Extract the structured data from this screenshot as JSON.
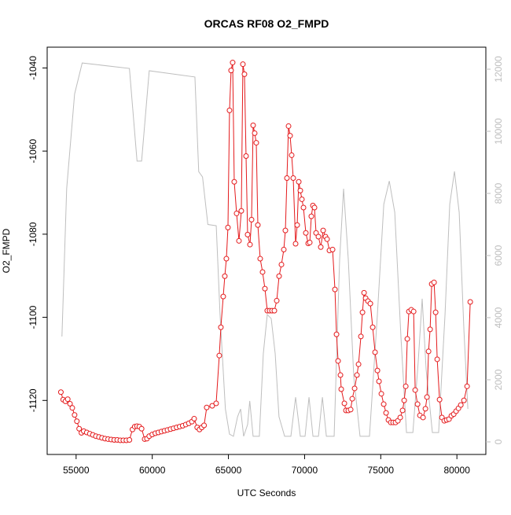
{
  "chart_data": {
    "type": "line",
    "title": "ORCAS RF08 O2_FMPD",
    "x_label": "UTC Seconds",
    "y_label": "O2_FMPD",
    "xlim": [
      53100,
      81900
    ],
    "ylim": [
      -1133,
      -1035
    ],
    "y2lim": [
      -405,
      12709
    ],
    "xticks": [
      55000,
      60000,
      65000,
      70000,
      75000,
      80000
    ],
    "yticks": [
      -1120,
      -1100,
      -1080,
      -1060,
      -1040
    ],
    "y2ticks": [
      0,
      2000,
      4000,
      6000,
      8000,
      10000,
      12000
    ],
    "series": [
      {
        "name": "O2_FMPD",
        "color": "#e41a1c",
        "markers": true,
        "x": [
          54000,
          54150,
          54300,
          54450,
          54600,
          54750,
          54900,
          55050,
          55200,
          55350,
          55500,
          55700,
          55900,
          56100,
          56300,
          56500,
          56700,
          56900,
          57100,
          57300,
          57500,
          57700,
          57900,
          58100,
          58300,
          58500,
          58700,
          58850,
          59000,
          59150,
          59300,
          59500,
          59650,
          59800,
          60000,
          60200,
          60400,
          60600,
          60800,
          61000,
          61200,
          61400,
          61600,
          61800,
          62000,
          62200,
          62400,
          62600,
          62750,
          62950,
          63100,
          63250,
          63400,
          63574,
          63936,
          64194,
          64400,
          64504,
          64659,
          64762,
          64865,
          64969,
          65072,
          65175,
          65278,
          65382,
          65537,
          65692,
          65847,
          65950,
          66053,
          66157,
          66260,
          66415,
          66518,
          66622,
          66725,
          66828,
          66932,
          67086,
          67241,
          67396,
          67551,
          67706,
          67861,
          68016,
          68171,
          68326,
          68481,
          68636,
          68739,
          68842,
          68946,
          69049,
          69152,
          69255,
          69410,
          69514,
          69617,
          69720,
          69823,
          69927,
          70082,
          70237,
          70340,
          70443,
          70547,
          70650,
          70753,
          70908,
          71063,
          71218,
          71373,
          71476,
          71631,
          71838,
          71993,
          72096,
          72199,
          72354,
          72406,
          72613,
          72716,
          72871,
          73026,
          73129,
          73284,
          73439,
          73542,
          73697,
          73801,
          73904,
          74007,
          74162,
          74317,
          74472,
          74627,
          74782,
          74885,
          75040,
          75195,
          75350,
          75505,
          75660,
          75815,
          75970,
          76125,
          76280,
          76434,
          76538,
          76641,
          76744,
          76848,
          77003,
          77158,
          77261,
          77416,
          77571,
          77777,
          77932,
          78036,
          78139,
          78242,
          78346,
          78500,
          78604,
          78707,
          78862,
          79017,
          79172,
          79327,
          79482,
          79637,
          79792,
          79947,
          80102,
          80256,
          80463,
          80669,
          80876
        ],
        "values": [
          -1118,
          -1119.8,
          -1120.2,
          -1119.7,
          -1120.8,
          -1121.8,
          -1123.5,
          -1125,
          -1126.8,
          -1127.8,
          -1127.4,
          -1127.7,
          -1128,
          -1128.3,
          -1128.6,
          -1128.8,
          -1129,
          -1129.2,
          -1129.3,
          -1129.4,
          -1129.5,
          -1129.5,
          -1129.6,
          -1129.6,
          -1129.6,
          -1129.5,
          -1127,
          -1126.3,
          -1126.2,
          -1126.3,
          -1126.8,
          -1129.3,
          -1129.2,
          -1128.6,
          -1128.2,
          -1127.9,
          -1127.7,
          -1127.5,
          -1127.3,
          -1127.1,
          -1126.9,
          -1126.7,
          -1126.5,
          -1126.3,
          -1126.1,
          -1125.8,
          -1125.5,
          -1125.1,
          -1124.4,
          -1126.5,
          -1127,
          -1126.5,
          -1126,
          -1121.7,
          -1121.3,
          -1120.7,
          -1109.2,
          -1102.4,
          -1095,
          -1090.1,
          -1085.9,
          -1078.4,
          -1050.2,
          -1040.6,
          -1038.7,
          -1067.4,
          -1075,
          -1081.6,
          -1074.4,
          -1039.1,
          -1041.5,
          -1061.2,
          -1080.1,
          -1082.5,
          -1076.5,
          -1053.8,
          -1055.7,
          -1058,
          -1077.8,
          -1085.9,
          -1089.1,
          -1093.1,
          -1098.4,
          -1098.4,
          -1098.4,
          -1098.4,
          -1096,
          -1090.1,
          -1087.3,
          -1083.7,
          -1079.1,
          -1066.5,
          -1054,
          -1056.3,
          -1061,
          -1066.5,
          -1082.3,
          -1077.8,
          -1067.4,
          -1069.5,
          -1071.6,
          -1073.6,
          -1079.7,
          -1082.2,
          -1082,
          -1075.7,
          -1073.1,
          -1073.6,
          -1079.7,
          -1080.6,
          -1083.1,
          -1079.1,
          -1080.6,
          -1081.2,
          -1083.9,
          -1083.7,
          -1093.3,
          -1104.1,
          -1110.5,
          -1113.9,
          -1117.3,
          -1120.7,
          -1122.4,
          -1122.4,
          -1122.2,
          -1119.6,
          -1117.1,
          -1113.9,
          -1111.3,
          -1104.6,
          -1098.8,
          -1094.1,
          -1095.4,
          -1096.1,
          -1096.7,
          -1102.4,
          -1108.4,
          -1112.8,
          -1115.4,
          -1118.4,
          -1120.9,
          -1123,
          -1124.7,
          -1125.3,
          -1125.3,
          -1125.3,
          -1124.9,
          -1124.1,
          -1122.4,
          -1120,
          -1116.6,
          -1105.2,
          -1098.6,
          -1098.2,
          -1098.6,
          -1117.5,
          -1120.9,
          -1123.6,
          -1124.1,
          -1122,
          -1119.2,
          -1108.2,
          -1102.9,
          -1092,
          -1091.6,
          -1098.8,
          -1110.1,
          -1119.8,
          -1124.1,
          -1124.9,
          -1124.7,
          -1124.5,
          -1123.7,
          -1123.3,
          -1122.6,
          -1121.9,
          -1121.1,
          -1120,
          -1116.6,
          -1096.3
        ]
      },
      {
        "color": "#bebebe",
        "axis": "y2",
        "x": [
          54070,
          54380,
          54900,
          55400,
          58500,
          59000,
          59300,
          59800,
          62800,
          63050,
          63300,
          63650,
          64200,
          64450,
          64800,
          65070,
          65330,
          65600,
          65800,
          66000,
          66260,
          66400,
          66620,
          67030,
          67290,
          67550,
          67810,
          68070,
          68320,
          68690,
          69100,
          69410,
          69720,
          70030,
          70290,
          70550,
          70910,
          71170,
          71430,
          71940,
          72300,
          72560,
          72870,
          73230,
          73640,
          74260,
          74780,
          75200,
          75560,
          75920,
          76330,
          76690,
          77110,
          77460,
          77720,
          77980,
          78390,
          78800,
          79220,
          79530,
          79840,
          80150,
          80460,
          80720
        ],
        "values": [
          3392,
          8150,
          11200,
          12200,
          12025,
          9040,
          9040,
          11950,
          11750,
          8700,
          8530,
          7000,
          6960,
          4100,
          1060,
          250,
          180,
          810,
          1060,
          180,
          560,
          1320,
          180,
          180,
          2840,
          4100,
          3970,
          2840,
          810,
          180,
          180,
          1440,
          180,
          180,
          1440,
          180,
          180,
          1440,
          180,
          180,
          5870,
          8150,
          5870,
          2080,
          180,
          180,
          4100,
          7650,
          8400,
          7390,
          3340,
          300,
          300,
          2580,
          4610,
          2330,
          300,
          300,
          4100,
          7650,
          8710,
          7390,
          3600,
          1060
        ]
      }
    ]
  }
}
